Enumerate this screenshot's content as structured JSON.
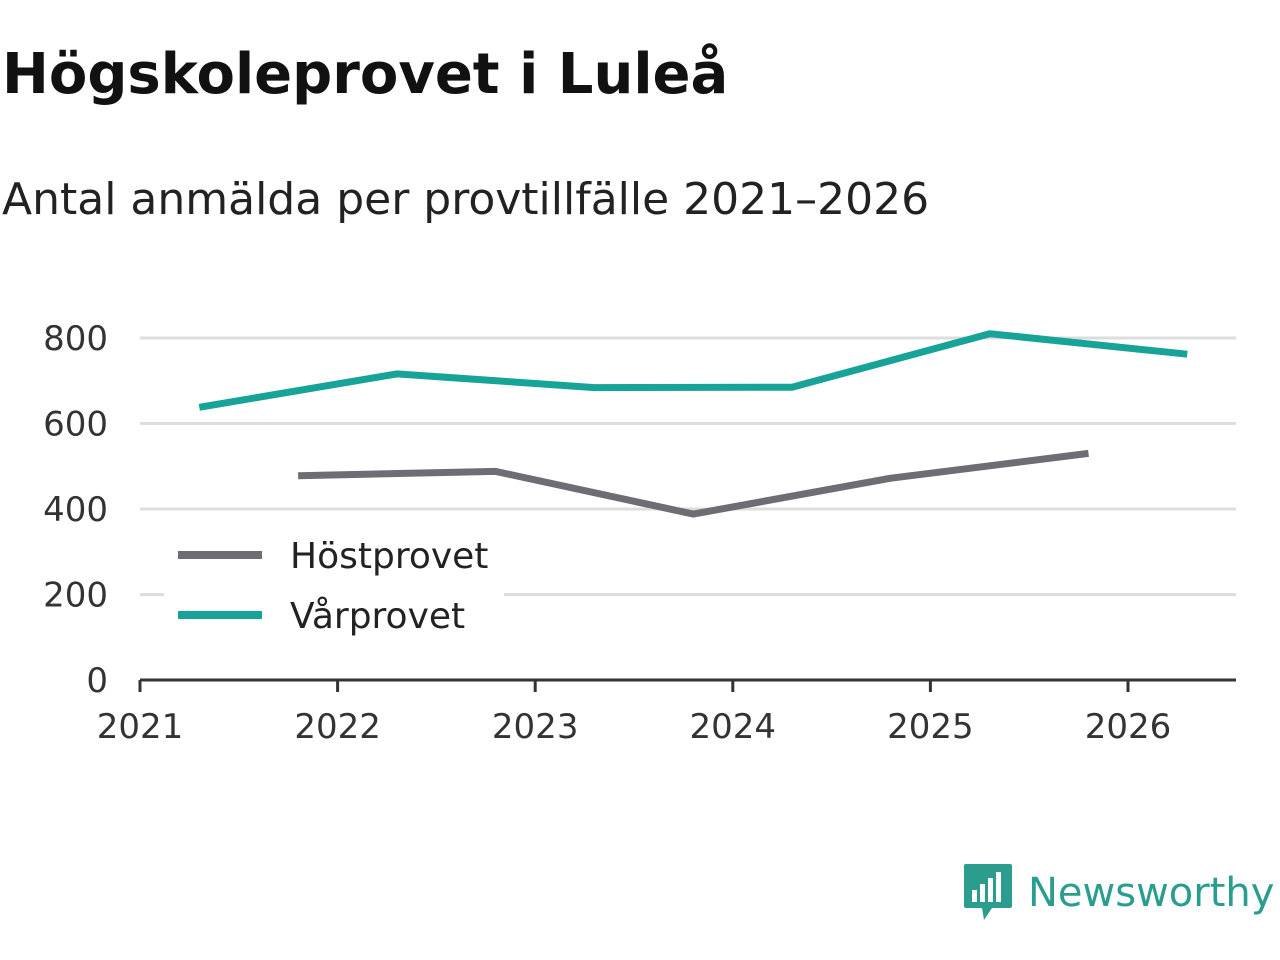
{
  "header": {
    "title": "Högskoleprovet i Luleå",
    "subtitle": "Antal anmälda per provtillfälle 2021–2026"
  },
  "colors": {
    "hostprovet": "#6e6d74",
    "varprovet": "#17a398",
    "grid": "#dddddd",
    "axis": "#333333",
    "brand": "#2a9d8f"
  },
  "chart_data": {
    "type": "line",
    "title": "Högskoleprovet i Luleå",
    "subtitle": "Antal anmälda per provtillfälle 2021–2026",
    "xlabel": "",
    "ylabel": "",
    "xlim": [
      2021,
      2026.5
    ],
    "ylim": [
      0,
      800
    ],
    "x_ticks": [
      "2021",
      "2022",
      "2023",
      "2024",
      "2025",
      "2026"
    ],
    "y_ticks": [
      "0",
      "200",
      "400",
      "600",
      "800"
    ],
    "grid": true,
    "legend_position": "bottom-left",
    "series": [
      {
        "name": "Höstprovet",
        "color": "#6e6d74",
        "points": [
          {
            "x": 2021.8,
            "y": 478
          },
          {
            "x": 2022.8,
            "y": 488
          },
          {
            "x": 2023.8,
            "y": 388
          },
          {
            "x": 2024.8,
            "y": 472
          },
          {
            "x": 2025.8,
            "y": 530
          }
        ]
      },
      {
        "name": "Vårprovet",
        "color": "#17a398",
        "points": [
          {
            "x": 2021.3,
            "y": 638
          },
          {
            "x": 2022.3,
            "y": 716
          },
          {
            "x": 2023.3,
            "y": 684
          },
          {
            "x": 2024.3,
            "y": 685
          },
          {
            "x": 2025.3,
            "y": 810
          },
          {
            "x": 2026.3,
            "y": 762
          }
        ]
      }
    ]
  },
  "brand": {
    "name": "Newsworthy",
    "icon": "newsworthy-logo-icon"
  }
}
